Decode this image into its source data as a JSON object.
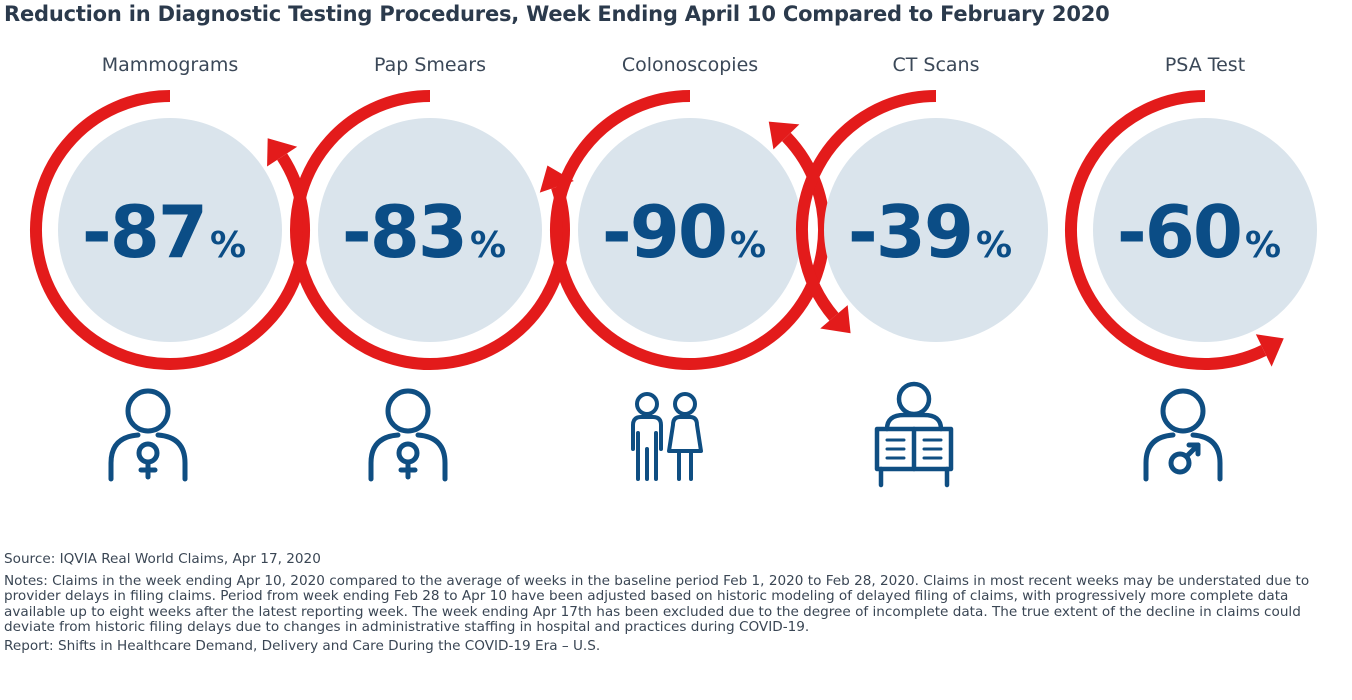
{
  "title": "Reduction in Diagnostic Testing Procedures, Week Ending April 10 Compared to February 2020",
  "colors": {
    "ring": "#e31b1b",
    "disc": "#dae4ec",
    "value": "#0b4d86",
    "icon": "#0f4e82"
  },
  "chart_data": {
    "type": "gauge",
    "unit": "%",
    "categories": [
      "Mammograms",
      "Pap Smears",
      "Colonoscopies",
      "CT Scans",
      "PSA Test"
    ],
    "values": [
      -87,
      -83,
      -90,
      -39,
      -60
    ],
    "value_labels": [
      "-87",
      "-83",
      "-90",
      "-39",
      "-60"
    ],
    "icons": [
      "female-person-icon",
      "female-person-icon",
      "couple-icon",
      "person-reading-icon",
      "male-person-icon"
    ]
  },
  "footer": {
    "source": "Source: IQVIA Real World Claims, Apr 17, 2020",
    "notes": "Notes: Claims in the week ending Apr 10, 2020 compared to the average of weeks in the baseline period Feb 1, 2020 to Feb 28, 2020. Claims in most recent weeks may be understated due to provider delays in filing claims. Period from week ending Feb 28 to Apr 10 have been adjusted based on historic modeling of delayed filing of claims, with progressively more complete data available up to eight weeks after the latest reporting week. The week ending Apr 17th has been excluded due to the degree of incomplete data. The true extent of the decline in claims could deviate from historic filing delays due to changes in administrative staffing in hospital and practices during COVID-19.",
    "report": "Report: Shifts in Healthcare Demand, Delivery and Care During the COVID-19 Era – U.S."
  }
}
